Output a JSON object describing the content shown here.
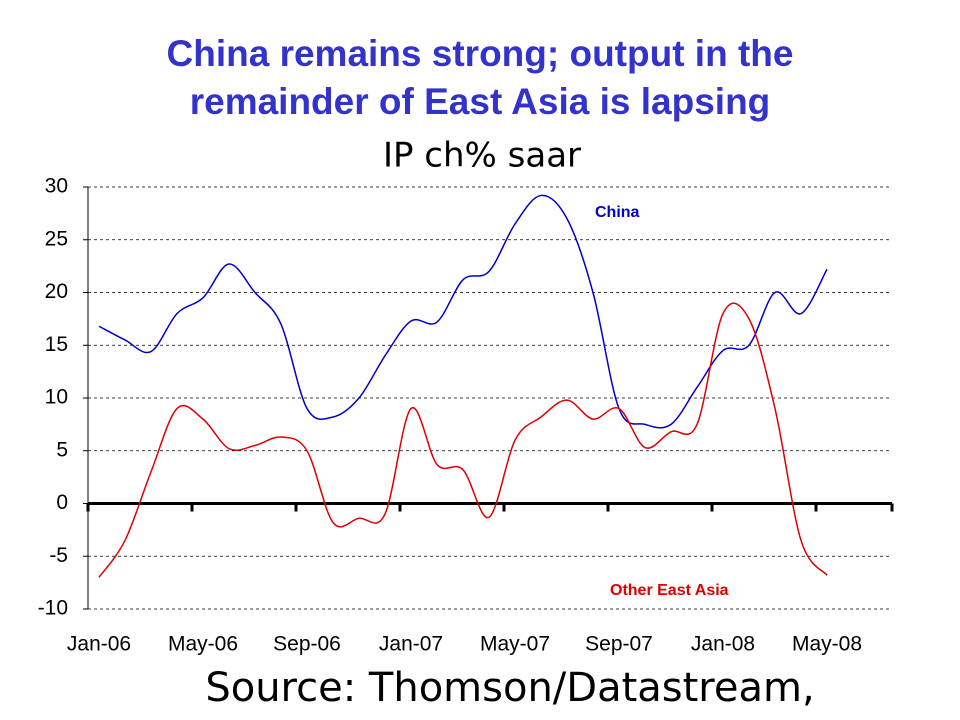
{
  "chart_data": {
    "type": "line",
    "title": [
      "China remains strong; output in the",
      "remainder of East Asia is lapsing"
    ],
    "subtitle": "IP ch% saar",
    "source": "Source: Thomson/Datastream,",
    "categories": [
      "Jan-06",
      null,
      null,
      null,
      "May-06",
      null,
      null,
      null,
      "Sep-06",
      null,
      null,
      null,
      "Jan-07",
      null,
      null,
      null,
      "May-07",
      null,
      null,
      null,
      "Sep-07",
      null,
      null,
      null,
      "Jan-08",
      null,
      null,
      null,
      "May-08"
    ],
    "series": [
      {
        "name": "China",
        "color": "#0000cc",
        "values": [
          16.8,
          15.5,
          14.4,
          18,
          19.5,
          22.7,
          20,
          17,
          9,
          8.2,
          10,
          14,
          17.3,
          17.2,
          21.2,
          22,
          26.5,
          29.2,
          27,
          20,
          9,
          7.5,
          7.5,
          11,
          14.5,
          15,
          20,
          18,
          22.2
        ]
      },
      {
        "name": "Other East Asia",
        "color": "#dd0000",
        "values": [
          -7,
          -3.5,
          3,
          9,
          8,
          5.2,
          5.5,
          6.3,
          5,
          -1.8,
          -1.4,
          -1,
          9,
          3.7,
          3.2,
          -1.3,
          6,
          8.2,
          9.8,
          8,
          9,
          5.3,
          6.8,
          7.5,
          18,
          17.5,
          9,
          -3.5,
          -6.8
        ]
      }
    ],
    "ylim": [
      -10,
      30
    ],
    "yticks": [
      -10,
      -5,
      0,
      5,
      10,
      15,
      20,
      25,
      30
    ],
    "grid": true
  }
}
